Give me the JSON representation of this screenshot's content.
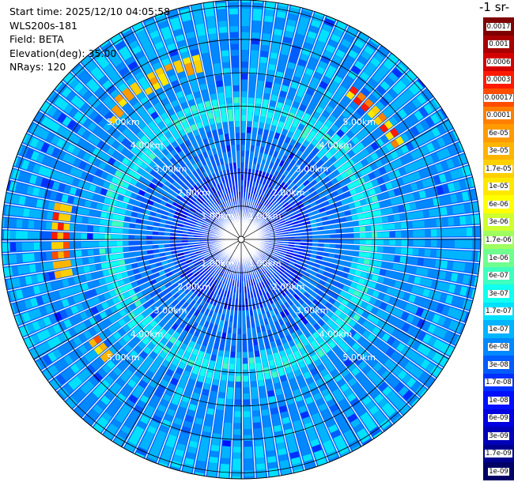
{
  "info": {
    "start_time": "Start time: 2025/12/10 04:05:58",
    "site": "WLS200s-181",
    "field": "Field: BETA",
    "elevation": "Elevation(deg): 35.00",
    "nrays": "NRays: 120"
  },
  "units_label": "-1 sr-",
  "ring_labels": [
    "1.00km",
    "2.00km",
    "3.00km",
    "4.00km",
    "5.00km"
  ],
  "colorbar": {
    "labels": [
      "0.0017",
      "0.001",
      "0.0006",
      "0.0003",
      "0.00017",
      "0.0001",
      "6e-05",
      "3e-05",
      "1.7e-05",
      "1e-05",
      "6e-06",
      "3e-06",
      "1.7e-06",
      "1e-06",
      "6e-07",
      "3e-07",
      "1.7e-07",
      "1e-07",
      "6e-08",
      "3e-08",
      "1.7e-08",
      "1e-08",
      "6e-09",
      "3e-09",
      "1.7e-09",
      "1e-09"
    ],
    "colors": [
      "#7f0000",
      "#a80000",
      "#d40000",
      "#ff1a00",
      "#ff4d00",
      "#ff7f00",
      "#ff9a00",
      "#ffb400",
      "#ffd000",
      "#ffe800",
      "#ffff00",
      "#cfff30",
      "#9fff5f",
      "#6fff8f",
      "#3fffbf",
      "#10ffef",
      "#00e0ff",
      "#00b4ff",
      "#0088ff",
      "#005cff",
      "#0030ff",
      "#0010ff",
      "#0000e0",
      "#0000b8",
      "#00008f",
      "#000066"
    ]
  }
}
